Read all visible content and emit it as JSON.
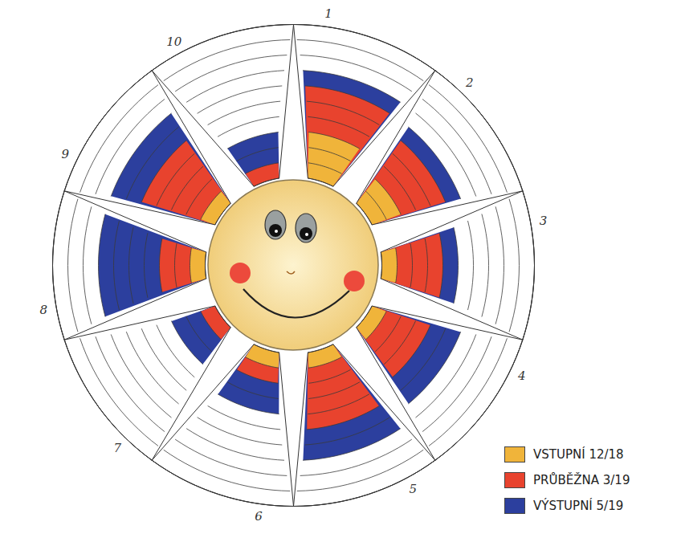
{
  "chart_data": {
    "type": "radial_bar",
    "categories": [
      "1",
      "2",
      "3",
      "4",
      "5",
      "6",
      "7",
      "8",
      "9",
      "10"
    ],
    "series": [
      {
        "name": "VSTUPNÍ 12/18",
        "color": "#f0b43a",
        "values": [
          3,
          2,
          1,
          1,
          1,
          1,
          0,
          1,
          1,
          0
        ]
      },
      {
        "name": "PRŮBĚŽNA 3/19",
        "color": "#e8432e",
        "values": [
          6,
          5,
          4,
          4,
          5,
          2,
          1,
          3,
          5,
          1
        ]
      },
      {
        "name": "VÝSTUPNÍ 5/19",
        "color": "#2c3f9e",
        "values": [
          7,
          6,
          5,
          6,
          7,
          4,
          3,
          7,
          7,
          3
        ]
      }
    ],
    "ylim": [
      0,
      10
    ],
    "yticks": [
      0,
      1,
      2,
      3,
      4,
      5,
      6,
      7,
      8,
      9,
      10
    ],
    "grid": true,
    "tick_labels": false,
    "legend": "bottom-right"
  }
}
